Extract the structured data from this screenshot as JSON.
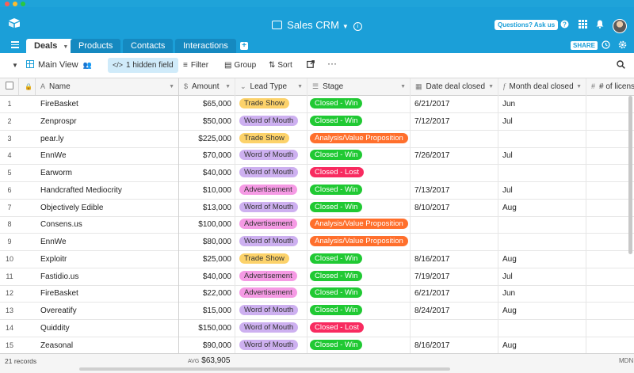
{
  "window": {
    "title": "Sales CRM"
  },
  "header": {
    "help_label": "Questions? Ask us",
    "icons": [
      "help-icon",
      "apps-grid-icon",
      "notifications-bell-icon",
      "user-avatar"
    ]
  },
  "tabs": [
    {
      "label": "Deals",
      "active": true
    },
    {
      "label": "Products",
      "active": false
    },
    {
      "label": "Contacts",
      "active": false
    },
    {
      "label": "Interactions",
      "active": false
    }
  ],
  "share_label": "SHARE",
  "toolbar": {
    "view_name": "Main View",
    "hidden_fields": "1 hidden field",
    "filter": "Filter",
    "group": "Group",
    "sort": "Sort",
    "more": "···"
  },
  "columns": {
    "name": "Name",
    "amount": "Amount",
    "lead": "Lead Type",
    "stage": "Stage",
    "date": "Date deal closed",
    "month": "Month deal closed",
    "licenses": "# of licens"
  },
  "colors": {
    "Trade Show": "#fcd26a",
    "Word of Mouth": "#cdb0f0",
    "Advertisement": "#f59ae4",
    "Closed - Win": "#20c933",
    "Closed - Lost": "#f82b60",
    "Analysis/Value Proposition": "#ff6f2c"
  },
  "rows": [
    {
      "num": "1",
      "name": "FireBasket",
      "amount": "$65,000",
      "lead": "Trade Show",
      "stage": "Closed - Win",
      "date": "6/21/2017",
      "month": "Jun"
    },
    {
      "num": "2",
      "name": "Zenprospr",
      "amount": "$50,000",
      "lead": "Word of Mouth",
      "stage": "Closed - Win",
      "date": "7/12/2017",
      "month": "Jul"
    },
    {
      "num": "3",
      "name": "pear.ly",
      "amount": "$225,000",
      "lead": "Trade Show",
      "stage": "Analysis/Value Proposition",
      "date": "",
      "month": ""
    },
    {
      "num": "4",
      "name": "EnnWe",
      "amount": "$70,000",
      "lead": "Word of Mouth",
      "stage": "Closed - Win",
      "date": "7/26/2017",
      "month": "Jul"
    },
    {
      "num": "5",
      "name": "Earworm",
      "amount": "$40,000",
      "lead": "Word of Mouth",
      "stage": "Closed - Lost",
      "date": "",
      "month": ""
    },
    {
      "num": "6",
      "name": "Handcrafted Mediocrity",
      "amount": "$10,000",
      "lead": "Advertisement",
      "stage": "Closed - Win",
      "date": "7/13/2017",
      "month": "Jul"
    },
    {
      "num": "7",
      "name": "Objectively Edible",
      "amount": "$13,000",
      "lead": "Word of Mouth",
      "stage": "Closed - Win",
      "date": "8/10/2017",
      "month": "Aug"
    },
    {
      "num": "8",
      "name": "Consens.us",
      "amount": "$100,000",
      "lead": "Advertisement",
      "stage": "Analysis/Value Proposition",
      "date": "",
      "month": ""
    },
    {
      "num": "9",
      "name": "EnnWe",
      "amount": "$80,000",
      "lead": "Word of Mouth",
      "stage": "Analysis/Value Proposition",
      "date": "",
      "month": ""
    },
    {
      "num": "10",
      "name": "Exploitr",
      "amount": "$25,000",
      "lead": "Trade Show",
      "stage": "Closed - Win",
      "date": "8/16/2017",
      "month": "Aug"
    },
    {
      "num": "11",
      "name": "Fastidio.us",
      "amount": "$40,000",
      "lead": "Advertisement",
      "stage": "Closed - Win",
      "date": "7/19/2017",
      "month": "Jul"
    },
    {
      "num": "12",
      "name": "FireBasket",
      "amount": "$22,000",
      "lead": "Advertisement",
      "stage": "Closed - Win",
      "date": "6/21/2017",
      "month": "Jun"
    },
    {
      "num": "13",
      "name": "Overeatify",
      "amount": "$15,000",
      "lead": "Word of Mouth",
      "stage": "Closed - Win",
      "date": "8/24/2017",
      "month": "Aug"
    },
    {
      "num": "14",
      "name": "Quiddity",
      "amount": "$150,000",
      "lead": "Word of Mouth",
      "stage": "Closed - Lost",
      "date": "",
      "month": ""
    },
    {
      "num": "15",
      "name": "Zeasonal",
      "amount": "$90,000",
      "lead": "Word of Mouth",
      "stage": "Closed - Win",
      "date": "8/16/2017",
      "month": "Aug"
    }
  ],
  "footer": {
    "records": "21 records",
    "avg_label": "AVG",
    "avg_value": "$63,905",
    "right_label": "MDN"
  }
}
